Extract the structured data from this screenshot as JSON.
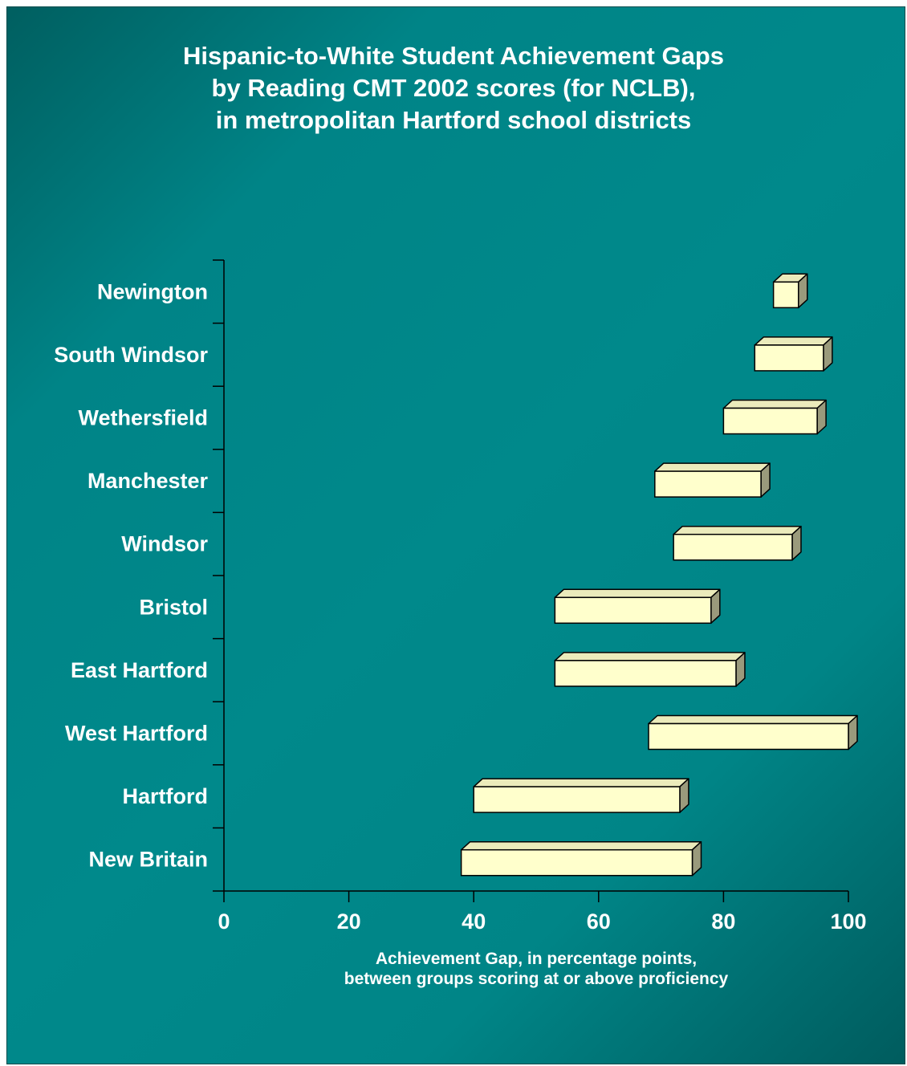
{
  "chart_data": {
    "type": "bar",
    "subtype": "floating-horizontal-3d",
    "title_lines": [
      "Hispanic-to-White Student Achievement Gaps",
      "by Reading CMT 2002 scores (for NCLB),",
      "in metropolitan Hartford school districts"
    ],
    "xlabel_lines": [
      "Achievement Gap, in percentage points,",
      "between groups scoring at or above proficiency"
    ],
    "ylabel": "",
    "xlim": [
      0,
      100
    ],
    "x_ticks": [
      "0",
      "20",
      "40",
      "60",
      "80",
      "100"
    ],
    "categories": [
      "Newington",
      "South Windsor",
      "Wethersfield",
      "Manchester",
      "Windsor",
      "Bristol",
      "East Hartford",
      "West Hartford",
      "Hartford",
      "New Britain"
    ],
    "ranges": [
      [
        88,
        92
      ],
      [
        85,
        96
      ],
      [
        80,
        95
      ],
      [
        69,
        86
      ],
      [
        72,
        91
      ],
      [
        53,
        78
      ],
      [
        53,
        82
      ],
      [
        68,
        100
      ],
      [
        40,
        73
      ],
      [
        38,
        75
      ]
    ],
    "grid": false,
    "legend": "none",
    "colors": {
      "background": "#008a8c",
      "bar_front": "#ffffcc",
      "bar_top": "#ebebbb",
      "bar_side": "#9a9a7c",
      "bar_outline": "#000000",
      "text": "#ffffff",
      "axis": "#000000"
    }
  }
}
